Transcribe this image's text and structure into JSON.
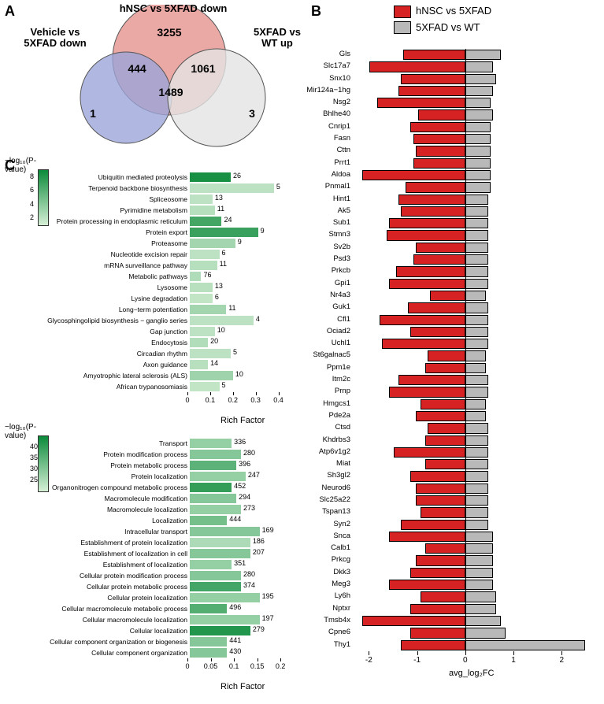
{
  "labels": {
    "A": "A",
    "B": "B",
    "C": "C"
  },
  "venn": {
    "title_top": "hNSC vs 5XFAD down",
    "title_left": "Vehicle vs\n5XFAD down",
    "title_right": "5XFAD vs\nWT up",
    "n_top_only": "3255",
    "n_left_top": "444",
    "n_top_right": "1061",
    "n_center": "1489",
    "n_left_only": "1",
    "n_right_only": "3",
    "colors": {
      "top": "#e89a97",
      "left": "#9aa4d9",
      "right": "#e3e3e3",
      "stroke": "#444"
    }
  },
  "legend": {
    "items": [
      {
        "color": "#d62222",
        "label": "hNSC vs 5XFAD"
      },
      {
        "color": "#b9b9b9",
        "label": "5XFAD vs WT"
      }
    ]
  },
  "panelC_upper": {
    "xmax": 0.45,
    "xticks": [
      0,
      0.1,
      0.2,
      0.3,
      0.4
    ],
    "xtitle": "Rich Factor",
    "cb_title": "−log₁₀(P-value)",
    "cb_ticks": [
      2,
      4,
      6,
      8
    ],
    "cb_min": 1,
    "cb_max": 9,
    "color_lo": "#d6efd6",
    "color_hi": "#0b8a3a",
    "rows": [
      {
        "label": "Ubiquitin mediated proteolysis",
        "rf": 0.18,
        "p": 8.5,
        "n": 26
      },
      {
        "label": "Terpenoid backbone biosynthesis",
        "rf": 0.37,
        "p": 2.0,
        "n": 5
      },
      {
        "label": "Spliceosome",
        "rf": 0.1,
        "p": 2.0,
        "n": 13
      },
      {
        "label": "Pyrimidine metabolism",
        "rf": 0.11,
        "p": 2.3,
        "n": 11
      },
      {
        "label": "Protein processing in endoplasmic reticulum",
        "rf": 0.14,
        "p": 6.8,
        "n": 24
      },
      {
        "label": "Protein export",
        "rf": 0.3,
        "p": 7.2,
        "n": 9
      },
      {
        "label": "Proteasome",
        "rf": 0.2,
        "p": 3.0,
        "n": 9
      },
      {
        "label": "Nucleotide excision repair",
        "rf": 0.13,
        "p": 2.0,
        "n": 6
      },
      {
        "label": "mRNA surveillance pathway",
        "rf": 0.12,
        "p": 2.3,
        "n": 11
      },
      {
        "label": "Metabolic pathways",
        "rf": 0.05,
        "p": 2.5,
        "n": 76
      },
      {
        "label": "Lysosome",
        "rf": 0.1,
        "p": 2.2,
        "n": 13
      },
      {
        "label": "Lysine degradation",
        "rf": 0.1,
        "p": 1.8,
        "n": 6
      },
      {
        "label": "Long−term potentiation",
        "rf": 0.16,
        "p": 3.0,
        "n": 11
      },
      {
        "label": "Glycosphingolipid biosynthesis − ganglio series",
        "rf": 0.28,
        "p": 2.0,
        "n": 4
      },
      {
        "label": "Gap junction",
        "rf": 0.11,
        "p": 2.0,
        "n": 10
      },
      {
        "label": "Endocytosis",
        "rf": 0.08,
        "p": 2.4,
        "n": 20
      },
      {
        "label": "Circadian rhythm",
        "rf": 0.18,
        "p": 2.0,
        "n": 5
      },
      {
        "label": "Axon guidance",
        "rf": 0.08,
        "p": 2.2,
        "n": 14
      },
      {
        "label": "Amyotrophic lateral sclerosis (ALS)",
        "rf": 0.19,
        "p": 3.2,
        "n": 10
      },
      {
        "label": "African trypanosomiasis",
        "rf": 0.13,
        "p": 1.8,
        "n": 5
      }
    ]
  },
  "panelC_lower": {
    "xmax": 0.22,
    "xticks": [
      0,
      0.05,
      0.1,
      0.15,
      0.2
    ],
    "xtitle": "Rich Factor",
    "cb_title": "−log₁₀(P-value)",
    "cb_ticks": [
      25,
      30,
      35,
      40
    ],
    "cb_min": 20,
    "cb_max": 45,
    "color_lo": "#d6efd6",
    "color_hi": "#0b8a3a",
    "rows": [
      {
        "label": "Transport",
        "rf": 0.09,
        "p": 28,
        "n": 336
      },
      {
        "label": "Protein modification process",
        "rf": 0.11,
        "p": 30,
        "n": 280
      },
      {
        "label": "Protein metabolic process",
        "rf": 0.1,
        "p": 35,
        "n": 396
      },
      {
        "label": "Protein localization",
        "rf": 0.12,
        "p": 28,
        "n": 247
      },
      {
        "label": "Organonitrogen compound metabolic process",
        "rf": 0.09,
        "p": 40,
        "n": 452
      },
      {
        "label": "Macromolecule modification",
        "rf": 0.1,
        "p": 30,
        "n": 294
      },
      {
        "label": "Macromolecule localization",
        "rf": 0.11,
        "p": 28,
        "n": 273
      },
      {
        "label": "Localization",
        "rf": 0.08,
        "p": 32,
        "n": 444
      },
      {
        "label": "Intracellular transport",
        "rf": 0.15,
        "p": 30,
        "n": 169
      },
      {
        "label": "Establishment of protein localization",
        "rf": 0.13,
        "p": 25,
        "n": 186
      },
      {
        "label": "Establishment of localization in cell",
        "rf": 0.13,
        "p": 30,
        "n": 207
      },
      {
        "label": "Establishment of localization",
        "rf": 0.09,
        "p": 28,
        "n": 351
      },
      {
        "label": "Cellular protein modification process",
        "rf": 0.11,
        "p": 30,
        "n": 280
      },
      {
        "label": "Cellular protein metabolic process",
        "rf": 0.11,
        "p": 38,
        "n": 374
      },
      {
        "label": "Cellular protein localization",
        "rf": 0.15,
        "p": 28,
        "n": 195
      },
      {
        "label": "Cellular macromolecule metabolic process",
        "rf": 0.08,
        "p": 36,
        "n": 496
      },
      {
        "label": "Cellular macromolecule localization",
        "rf": 0.15,
        "p": 28,
        "n": 197
      },
      {
        "label": "Cellular localization",
        "rf": 0.13,
        "p": 42,
        "n": 279
      },
      {
        "label": "Cellular component organization or biogenesis",
        "rf": 0.08,
        "p": 30,
        "n": 441
      },
      {
        "label": "Cellular component organization",
        "rf": 0.08,
        "p": 30,
        "n": 430
      }
    ]
  },
  "panelB": {
    "xmin": -2.3,
    "xmax": 2.6,
    "xticks": [
      -2,
      -1,
      0,
      1,
      2
    ],
    "xtitle": "avg_log₂FC",
    "neg_color": "#d62222",
    "pos_color": "#b9b9b9",
    "genes": [
      {
        "g": "Gls",
        "n": -1.25,
        "p": 0.7
      },
      {
        "g": "Slc17a7",
        "n": -1.95,
        "p": 0.55
      },
      {
        "g": "Snx10",
        "n": -1.3,
        "p": 0.6
      },
      {
        "g": "Mir124a−1hg",
        "n": -1.35,
        "p": 0.55
      },
      {
        "g": "Nsg2",
        "n": -1.8,
        "p": 0.5
      },
      {
        "g": "Bhlhe40",
        "n": -0.95,
        "p": 0.55
      },
      {
        "g": "Cnrip1",
        "n": -1.1,
        "p": 0.5
      },
      {
        "g": "Fasn",
        "n": -1.05,
        "p": 0.5
      },
      {
        "g": "Cttn",
        "n": -1.0,
        "p": 0.5
      },
      {
        "g": "Prrt1",
        "n": -1.05,
        "p": 0.5
      },
      {
        "g": "Aldoa",
        "n": -2.1,
        "p": 0.5
      },
      {
        "g": "Pnmal1",
        "n": -1.2,
        "p": 0.5
      },
      {
        "g": "Hint1",
        "n": -1.35,
        "p": 0.45
      },
      {
        "g": "Ak5",
        "n": -1.3,
        "p": 0.45
      },
      {
        "g": "Sub1",
        "n": -1.55,
        "p": 0.45
      },
      {
        "g": "Stmn3",
        "n": -1.6,
        "p": 0.45
      },
      {
        "g": "Sv2b",
        "n": -1.0,
        "p": 0.45
      },
      {
        "g": "Psd3",
        "n": -1.05,
        "p": 0.45
      },
      {
        "g": "Prkcb",
        "n": -1.4,
        "p": 0.45
      },
      {
        "g": "Gpi1",
        "n": -1.55,
        "p": 0.45
      },
      {
        "g": "Nr4a3",
        "n": -0.7,
        "p": 0.4
      },
      {
        "g": "Guk1",
        "n": -1.15,
        "p": 0.45
      },
      {
        "g": "Cfl1",
        "n": -1.75,
        "p": 0.45
      },
      {
        "g": "Ociad2",
        "n": -1.1,
        "p": 0.45
      },
      {
        "g": "Uchl1",
        "n": -1.7,
        "p": 0.45
      },
      {
        "g": "St6galnac5",
        "n": -0.75,
        "p": 0.4
      },
      {
        "g": "Ppm1e",
        "n": -0.8,
        "p": 0.4
      },
      {
        "g": "Itm2c",
        "n": -1.35,
        "p": 0.45
      },
      {
        "g": "Prnp",
        "n": -1.55,
        "p": 0.45
      },
      {
        "g": "Hmgcs1",
        "n": -0.9,
        "p": 0.4
      },
      {
        "g": "Pde2a",
        "n": -1.0,
        "p": 0.4
      },
      {
        "g": "Ctsd",
        "n": -0.75,
        "p": 0.45
      },
      {
        "g": "Khdrbs3",
        "n": -0.8,
        "p": 0.45
      },
      {
        "g": "Atp6v1g2",
        "n": -1.45,
        "p": 0.45
      },
      {
        "g": "Miat",
        "n": -0.8,
        "p": 0.45
      },
      {
        "g": "Sh3gl2",
        "n": -1.1,
        "p": 0.45
      },
      {
        "g": "Neurod6",
        "n": -1.0,
        "p": 0.45
      },
      {
        "g": "Slc25a22",
        "n": -1.0,
        "p": 0.45
      },
      {
        "g": "Tspan13",
        "n": -0.9,
        "p": 0.45
      },
      {
        "g": "Syn2",
        "n": -1.3,
        "p": 0.45
      },
      {
        "g": "Snca",
        "n": -1.55,
        "p": 0.55
      },
      {
        "g": "Calb1",
        "n": -0.8,
        "p": 0.55
      },
      {
        "g": "Prkcg",
        "n": -1.0,
        "p": 0.55
      },
      {
        "g": "Dkk3",
        "n": -1.1,
        "p": 0.55
      },
      {
        "g": "Meg3",
        "n": -1.55,
        "p": 0.55
      },
      {
        "g": "Ly6h",
        "n": -0.9,
        "p": 0.6
      },
      {
        "g": "Nptxr",
        "n": -1.1,
        "p": 0.6
      },
      {
        "g": "Tmsb4x",
        "n": -2.1,
        "p": 0.7
      },
      {
        "g": "Cpne6",
        "n": -1.1,
        "p": 0.8
      },
      {
        "g": "Thy1",
        "n": -1.3,
        "p": 2.45
      }
    ]
  }
}
